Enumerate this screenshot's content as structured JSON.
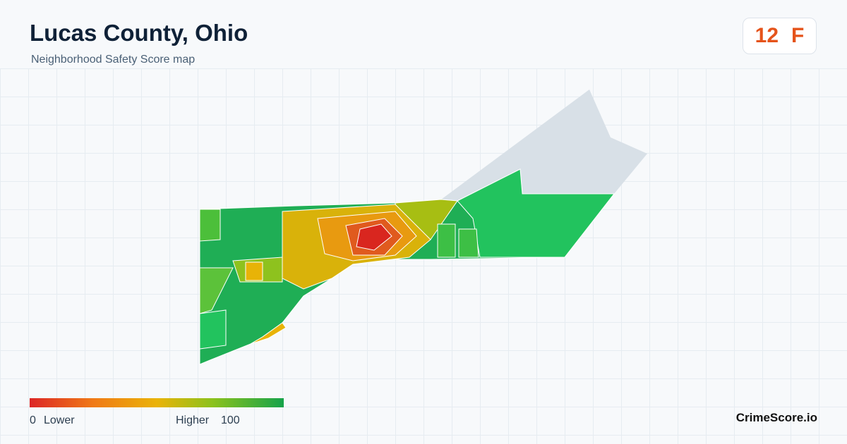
{
  "header": {
    "title": "Lucas County, Ohio",
    "subtitle": "Neighborhood Safety Score map"
  },
  "score": {
    "value": 12,
    "grade": "F"
  },
  "legend": {
    "min": 0,
    "min_label": "Lower",
    "max_label": "Higher",
    "max": 100
  },
  "brand": "CrimeScore.io"
}
